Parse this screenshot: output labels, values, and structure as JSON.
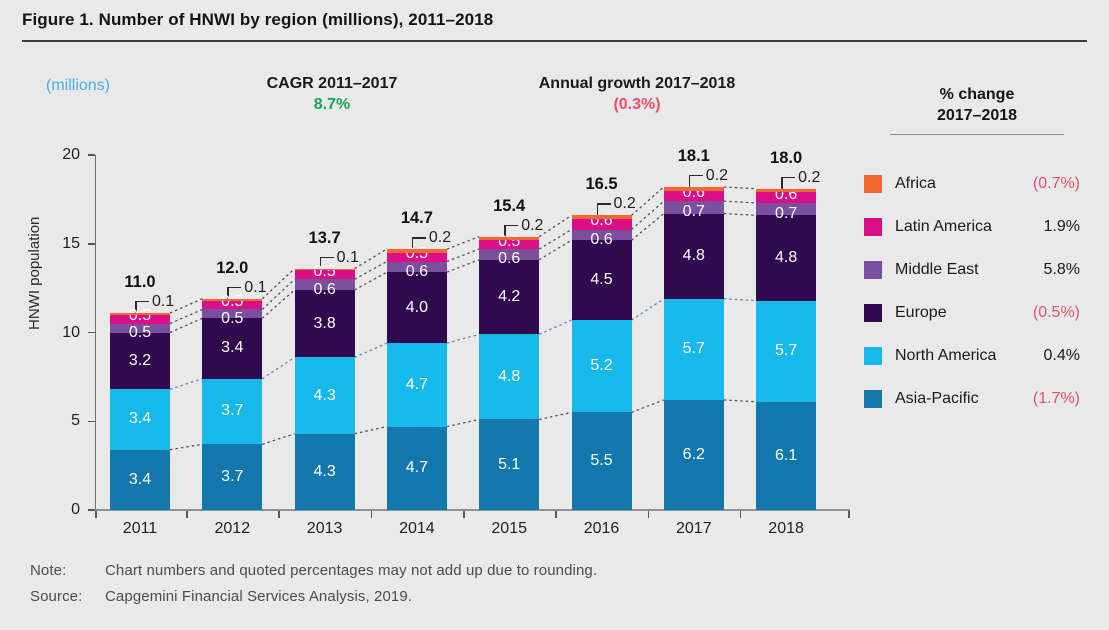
{
  "title": "Figure 1. Number of HNWI by region (millions), 2011–2018",
  "unit_label": "(millions)",
  "cagr": {
    "label": "CAGR 2011–2017",
    "value": "8.7%"
  },
  "annual_growth": {
    "label": "Annual growth 2017–2018",
    "value": "(0.3%)"
  },
  "legend": {
    "header_line1": "% change",
    "header_line2": "2017–2018",
    "items": [
      {
        "name": "Africa",
        "change": "(0.7%)",
        "negative": true,
        "color": "#f2682f"
      },
      {
        "name": "Latin America",
        "change": "1.9%",
        "negative": false,
        "color": "#da0f86"
      },
      {
        "name": "Middle East",
        "change": "5.8%",
        "negative": false,
        "color": "#7b4fa0"
      },
      {
        "name": "Europe",
        "change": "(0.5%)",
        "negative": true,
        "color": "#30094e"
      },
      {
        "name": "North America",
        "change": "0.4%",
        "negative": false,
        "color": "#16b9e9"
      },
      {
        "name": "Asia-Pacific",
        "change": "(1.7%)",
        "negative": true,
        "color": "#1177ad"
      }
    ]
  },
  "chart_data": {
    "type": "bar",
    "stacked": true,
    "title": "Number of HNWI by region (millions), 2011–2018",
    "ylabel": "HNWI population",
    "ylim": [
      0,
      20
    ],
    "yticks": [
      0,
      5,
      10,
      15,
      20
    ],
    "grid": false,
    "legend_position": "right",
    "categories": [
      "2011",
      "2012",
      "2013",
      "2014",
      "2015",
      "2016",
      "2017",
      "2018"
    ],
    "series": [
      {
        "name": "Asia-Pacific",
        "color": "#1177ad",
        "values": [
          3.4,
          3.7,
          4.3,
          4.7,
          5.1,
          5.5,
          6.2,
          6.1
        ]
      },
      {
        "name": "North America",
        "color": "#16b9e9",
        "values": [
          3.4,
          3.7,
          4.3,
          4.7,
          4.8,
          5.2,
          5.7,
          5.7
        ]
      },
      {
        "name": "Europe",
        "color": "#30094e",
        "values": [
          3.2,
          3.4,
          3.8,
          4.0,
          4.2,
          4.5,
          4.8,
          4.8
        ]
      },
      {
        "name": "Middle East",
        "color": "#7b4fa0",
        "values": [
          0.5,
          0.5,
          0.6,
          0.6,
          0.6,
          0.6,
          0.7,
          0.7
        ]
      },
      {
        "name": "Latin America",
        "color": "#da0f86",
        "values": [
          0.5,
          0.5,
          0.5,
          0.5,
          0.5,
          0.6,
          0.6,
          0.6
        ]
      },
      {
        "name": "Africa",
        "color": "#f2682f",
        "values": [
          0.1,
          0.1,
          0.1,
          0.2,
          0.2,
          0.2,
          0.2,
          0.2
        ]
      }
    ],
    "totals": [
      "11.0",
      "12.0",
      "13.7",
      "14.7",
      "15.4",
      "16.5",
      "18.1",
      "18.0"
    ]
  },
  "notes": {
    "note_label": "Note:",
    "note_text": "Chart numbers and quoted percentages may not add up due to rounding.",
    "source_label": "Source:",
    "source_text": "Capgemini Financial Services Analysis, 2019."
  }
}
